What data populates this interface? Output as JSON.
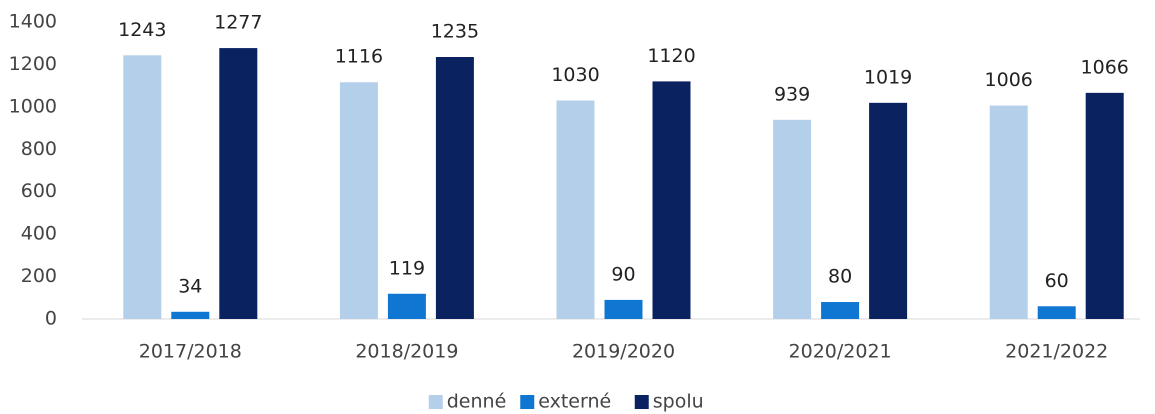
{
  "chart_data": {
    "type": "bar",
    "categories": [
      "2017/2018",
      "2018/2019",
      "2019/2020",
      "2020/2021",
      "2021/2022"
    ],
    "series": [
      {
        "name": "denné",
        "color": "#b4cfea",
        "values": [
          1243,
          1116,
          1030,
          939,
          1006
        ]
      },
      {
        "name": "externé",
        "color": "#0f77d2",
        "values": [
          34,
          119,
          90,
          80,
          60
        ]
      },
      {
        "name": "spolu",
        "color": "#0a2260",
        "values": [
          1277,
          1235,
          1120,
          1019,
          1066
        ]
      }
    ],
    "ylim": [
      0,
      1400
    ],
    "yticks": [
      0,
      200,
      400,
      600,
      800,
      1000,
      1200,
      1400
    ],
    "grid": false,
    "legend": "bottom"
  }
}
